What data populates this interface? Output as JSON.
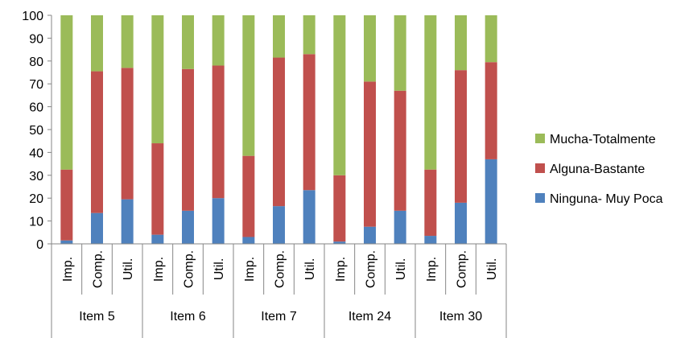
{
  "chart_data": {
    "type": "bar",
    "stacked": true,
    "percent": true,
    "title": "",
    "xlabel": "",
    "ylabel": "",
    "ylim": [
      0,
      100
    ],
    "yticks": [
      0,
      10,
      20,
      30,
      40,
      50,
      60,
      70,
      80,
      90,
      100
    ],
    "grid": false,
    "legend_position": "right",
    "groups": [
      "Item 5",
      "Item 6",
      "Item 7",
      "Item 24",
      "Item 30"
    ],
    "subcategories": [
      "Imp.",
      "Comp.",
      "Util."
    ],
    "categories": [
      "Imp.",
      "Comp.",
      "Util.",
      "Imp.",
      "Comp.",
      "Util.",
      "Imp.",
      "Comp.",
      "Util.",
      "Imp.",
      "Comp.",
      "Util.",
      "Imp.",
      "Comp.",
      "Util."
    ],
    "series": [
      {
        "name": "Ninguna- Muy Poca",
        "color": "#4F81BD",
        "values": [
          1.5,
          13.5,
          19.5,
          4,
          14.5,
          20,
          3,
          16.5,
          23.5,
          1,
          7.5,
          14.5,
          3.5,
          18,
          37
        ]
      },
      {
        "name": "Alguna-Bastante",
        "color": "#C0504D",
        "values": [
          31,
          62,
          57.5,
          40,
          62,
          58,
          35.5,
          65,
          59.5,
          29,
          63.5,
          52.5,
          29,
          58,
          42.5
        ]
      },
      {
        "name": "Mucha-Totalmente",
        "color": "#9BBB59",
        "values": [
          67.5,
          24.5,
          23,
          56,
          23.5,
          22,
          61.5,
          18.5,
          17,
          70,
          29,
          33,
          67.5,
          24,
          20.5
        ]
      }
    ],
    "legend_order": [
      "Mucha-Totalmente",
      "Alguna-Bastante",
      "Ninguna- Muy Poca"
    ]
  }
}
